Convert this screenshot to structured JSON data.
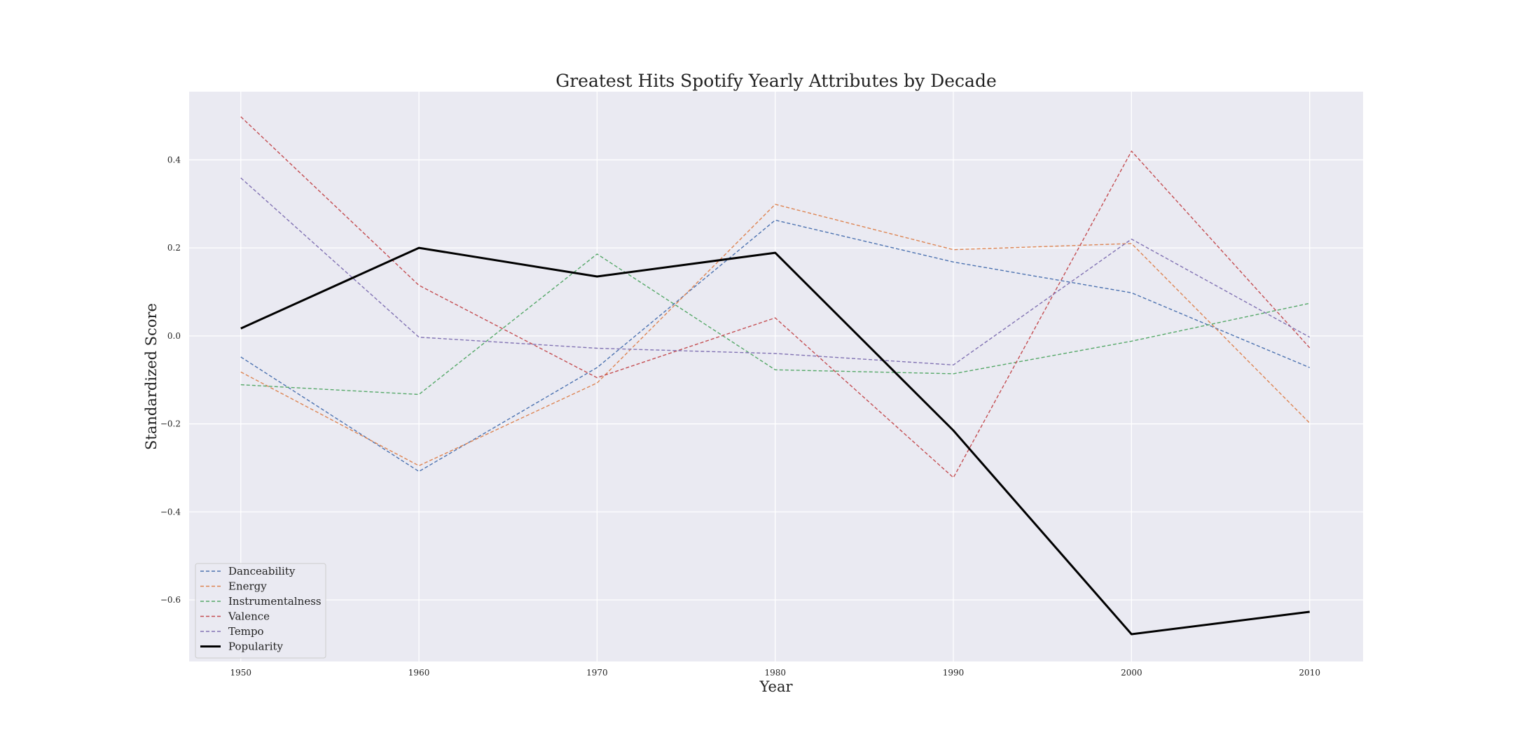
{
  "chart_data": {
    "type": "line",
    "title": "Greatest Hits Spotify Yearly Attributes by Decade",
    "xlabel": "Year",
    "ylabel": "Standardized Score",
    "x": [
      1950,
      1960,
      1970,
      1980,
      1990,
      2000,
      2010
    ],
    "xlim": [
      1947.1,
      2013
    ],
    "ylim": [
      -0.74,
      0.555
    ],
    "x_ticks": [
      1950,
      1960,
      1970,
      1980,
      1990,
      2000,
      2010
    ],
    "x_tick_labels": [
      "1950",
      "1960",
      "1970",
      "1980",
      "1990",
      "2000",
      "2010"
    ],
    "y_ticks": [
      -0.6,
      -0.4,
      -0.2,
      0.0,
      0.2,
      0.4
    ],
    "y_tick_labels": [
      "−0.6",
      "−0.4",
      "−0.2",
      "0.0",
      "0.2",
      "0.4"
    ],
    "grid": true,
    "legend_position": "lower-left",
    "background_color": "#eaeaf2",
    "series": [
      {
        "name": "Danceability",
        "color": "#4c72b0",
        "style": "dashed",
        "values": [
          -0.048,
          -0.308,
          -0.072,
          0.263,
          0.168,
          0.098,
          -0.072
        ]
      },
      {
        "name": "Energy",
        "color": "#dd8452",
        "style": "dashed",
        "values": [
          -0.082,
          -0.295,
          -0.107,
          0.299,
          0.196,
          0.21,
          -0.198
        ]
      },
      {
        "name": "Instrumentalness",
        "color": "#55a868",
        "style": "dashed",
        "values": [
          -0.111,
          -0.133,
          0.186,
          -0.077,
          -0.086,
          -0.012,
          0.074
        ]
      },
      {
        "name": "Valence",
        "color": "#c44e52",
        "style": "dashed",
        "values": [
          0.498,
          0.115,
          -0.095,
          0.041,
          -0.322,
          0.42,
          -0.027
        ]
      },
      {
        "name": "Tempo",
        "color": "#8172b3",
        "style": "dashed",
        "values": [
          0.359,
          -0.003,
          -0.028,
          -0.04,
          -0.066,
          0.22,
          -0.003
        ]
      },
      {
        "name": "Popularity",
        "color": "#000000",
        "style": "solid",
        "values": [
          0.017,
          0.2,
          0.135,
          0.189,
          -0.215,
          -0.678,
          -0.627
        ]
      }
    ]
  }
}
